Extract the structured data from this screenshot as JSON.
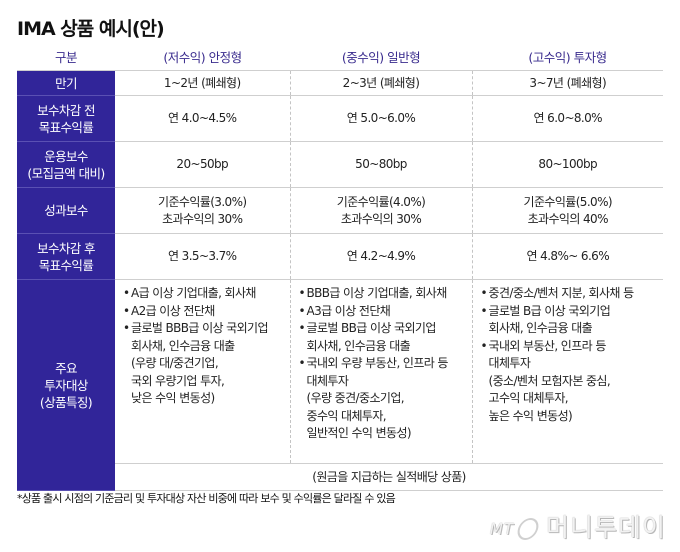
{
  "title": "IMA 상품 예시(안)",
  "table": {
    "columns": [
      "구분",
      "(저수익) 안정형",
      "(중수익) 일반형",
      "(고수익) 투자형"
    ],
    "rows": [
      {
        "label": [
          "만기"
        ],
        "values": [
          [
            "1~2년 (폐쇄형)"
          ],
          [
            "2~3년 (폐쇄형)"
          ],
          [
            "3~7년 (폐쇄형)"
          ]
        ]
      },
      {
        "label": [
          "보수차감 전",
          "목표수익률"
        ],
        "values": [
          [
            "연 4.0~4.5%"
          ],
          [
            "연 5.0~6.0%"
          ],
          [
            "연 6.0~8.0%"
          ]
        ]
      },
      {
        "label": [
          "운용보수",
          "(모집금액 대비)"
        ],
        "values": [
          [
            "20~50bp"
          ],
          [
            "50~80bp"
          ],
          [
            "80~100bp"
          ]
        ]
      },
      {
        "label": [
          "성과보수"
        ],
        "values": [
          [
            "기준수익률(3.0%)",
            "초과수익의 30%"
          ],
          [
            "기준수익률(4.0%)",
            "초과수익의 30%"
          ],
          [
            "기준수익률(5.0%)",
            "초과수익의 40%"
          ]
        ]
      },
      {
        "label": [
          "보수차감 후",
          "목표수익률"
        ],
        "values": [
          [
            "연 3.5~3.7%"
          ],
          [
            "연 4.2~4.9%"
          ],
          [
            "연 4.8%~ 6.6%"
          ]
        ]
      }
    ],
    "investment": {
      "label": [
        "주요",
        "투자대상",
        "(상품특징)"
      ],
      "bullet": "•",
      "columns": [
        {
          "items": [
            {
              "text": "A급 이상 기업대출, 회사채",
              "cont": []
            },
            {
              "text": "A2급 이상 전단채",
              "cont": []
            },
            {
              "text": "글로벌 BBB급 이상 국외기업",
              "cont": [
                "회사채, 인수금융 대출",
                "(우량 대/중견기업,",
                "국외 우량기업 투자,",
                "낮은 수익 변동성)"
              ]
            }
          ]
        },
        {
          "items": [
            {
              "text": "BBB급 이상 기업대출, 회사채",
              "cont": []
            },
            {
              "text": "A3급 이상 전단채",
              "cont": []
            },
            {
              "text": "글로벌 BB급 이상 국외기업",
              "cont": [
                "회사채, 인수금융 대출"
              ]
            },
            {
              "text": "국내외 우량 부동산, 인프라 등",
              "cont": [
                "대체투자",
                "(우량 중견/중소기업,",
                "중수익 대체투자,",
                "일반적인 수익 변동성)"
              ]
            }
          ]
        },
        {
          "items": [
            {
              "text": "중견/중소/벤처 지분, 회사채 등",
              "cont": []
            },
            {
              "text": "글로벌 B급 이상 국외기업",
              "cont": [
                "회사채, 인수금융 대출"
              ]
            },
            {
              "text": "국내외 부동산, 인프라 등",
              "cont": [
                "대체투자",
                "(중소/벤처 모험자본 중심,",
                "고수익 대체투자,",
                "높은 수익 변동성)"
              ]
            }
          ]
        }
      ],
      "note": "(원금을 지급하는 실적배당 상품)"
    }
  },
  "footnote": "*상품 출시 시점의 기준금리 및 투자대상 자산 비중에 따라 보수 및 수익률은 달라질 수 있음",
  "logo": {
    "mt": "MT",
    "name": "머니투데이"
  },
  "colors": {
    "header_bg": "#312599",
    "header_text": "#3a2c8e",
    "rule": "#cfcfcf"
  }
}
